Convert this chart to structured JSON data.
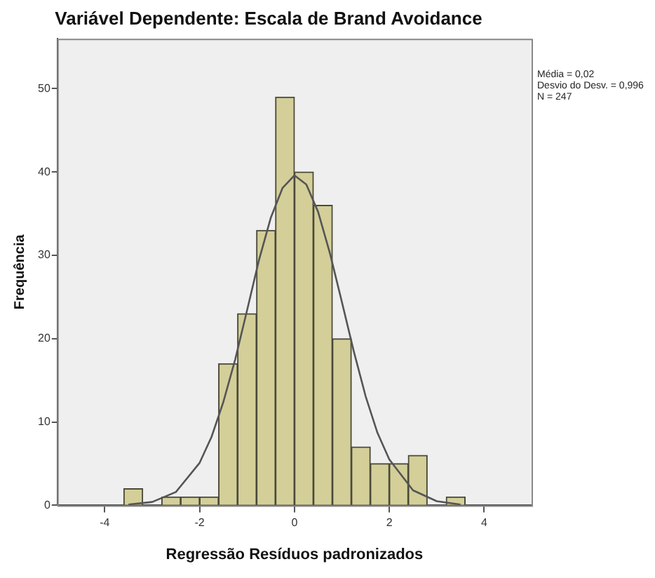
{
  "chart_data": {
    "type": "histogram",
    "title": "Variável Dependente: Escala de Brand Avoidance",
    "xlabel": "Regressão Resíduos padronizados",
    "ylabel": "Frequência",
    "bins": [
      -3.6,
      -3.2,
      -2.8,
      -2.4,
      -2.0,
      -1.6,
      -1.2,
      -0.8,
      -0.4,
      0,
      0.4,
      0.8,
      1.2,
      1.6,
      2.0,
      2.4,
      2.8,
      3.2,
      3.6
    ],
    "values": [
      2,
      0,
      1,
      1,
      1,
      17,
      23,
      33,
      49,
      40,
      36,
      20,
      7,
      5,
      5,
      6,
      0,
      1
    ],
    "color": "#d4cf99",
    "series": [
      {
        "type": "line",
        "color": "#555555",
        "x": [
          -3.5,
          -3,
          -2.5,
          -2,
          -1.75,
          -1.5,
          -1.25,
          -1,
          -0.75,
          -0.5,
          -0.25,
          0,
          0.25,
          0.5,
          0.75,
          1,
          1.25,
          1.5,
          1.75,
          2,
          2.5,
          3,
          3.5
        ],
        "values": [
          0.1,
          0.4,
          1.6,
          5.1,
          8.2,
          12.4,
          17.5,
          23.4,
          29.4,
          34.5,
          38.1,
          39.6,
          38.5,
          35.2,
          30.2,
          24.4,
          18.5,
          13.1,
          8.7,
          5.5,
          1.8,
          0.5,
          0.1
        ]
      }
    ],
    "xlim": [
      -5,
      5
    ],
    "xticks": [
      -4,
      -2,
      0,
      2,
      4
    ],
    "ylim": [
      0,
      56
    ],
    "yticks": [
      0,
      10,
      20,
      30,
      40,
      50
    ],
    "grid": false,
    "legend": false,
    "marker": "none",
    "line_style": "solid",
    "annotations": [
      "Média = 0,02",
      "Desvio do Desv. = 0,996",
      "N = 247"
    ]
  }
}
